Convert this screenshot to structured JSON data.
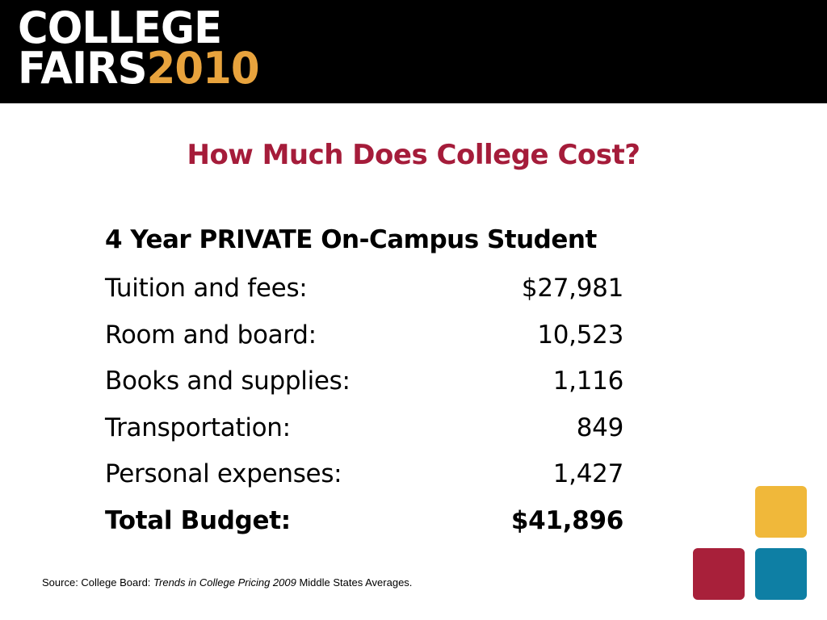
{
  "header": {
    "logo_line1": "COLLEGE",
    "logo_fairs": "FAIRS",
    "logo_year": "2010"
  },
  "slide": {
    "title": "How Much Does College Cost?",
    "table_heading": "4 Year PRIVATE On-Campus Student",
    "rows": [
      {
        "label": "Tuition and fees:",
        "value": "$27,981"
      },
      {
        "label": "Room and board:",
        "value": "10,523"
      },
      {
        "label": "Books and supplies:",
        "value": "1,116"
      },
      {
        "label": "Transportation:",
        "value": "849"
      },
      {
        "label": "Personal expenses:",
        "value": "1,427"
      }
    ],
    "total": {
      "label": "Total Budget:",
      "value": "$41,896"
    }
  },
  "source": {
    "prefix": "Source: College Board: ",
    "publication": "Trends in College Pricing 2009",
    "suffix": " Middle States Averages."
  },
  "colors": {
    "header_background": "#000000",
    "title": "#a51c3a",
    "logo_year": "#e8a33d",
    "square_yellow": "#f0b83a",
    "square_red": "#a8203a",
    "square_blue": "#0e7fa4"
  }
}
